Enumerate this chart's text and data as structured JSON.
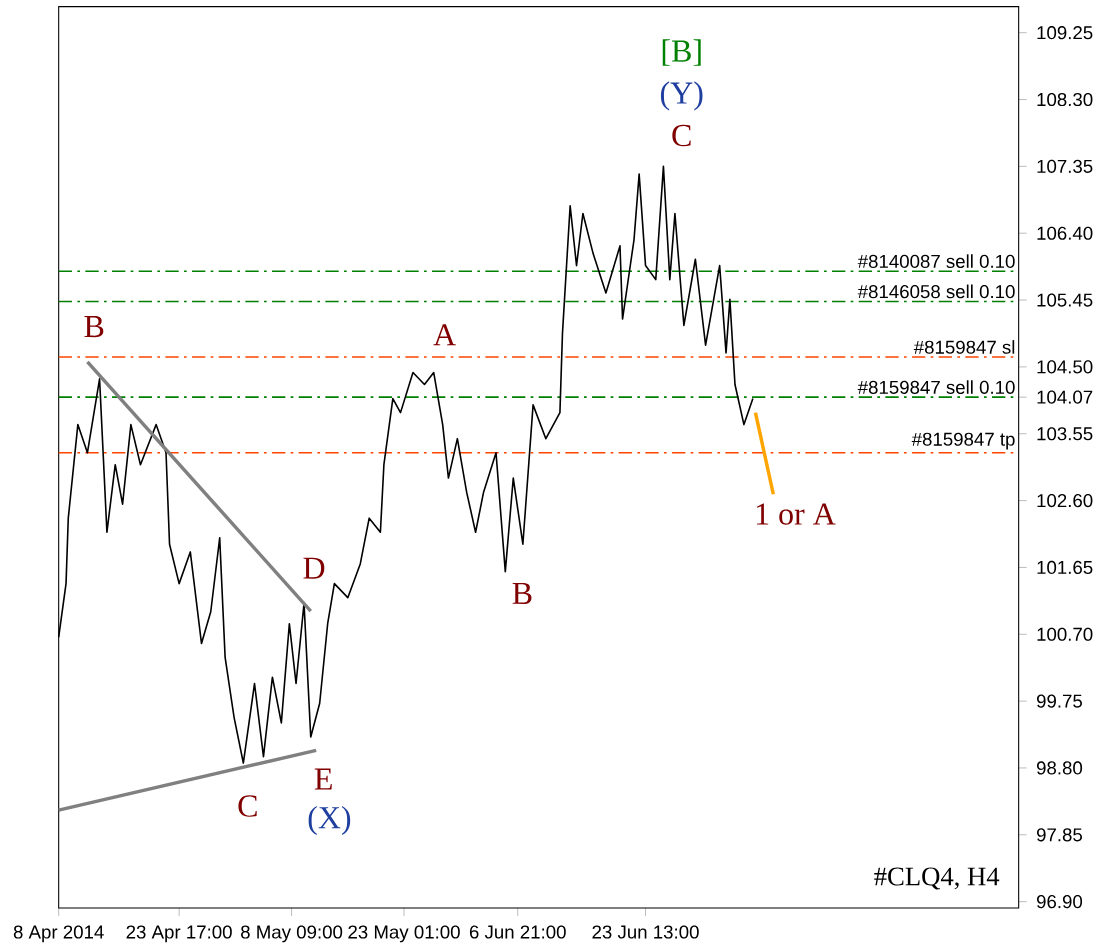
{
  "chart_data": {
    "type": "line",
    "xlim": [
      "2014-04-08T00:00",
      "2014-08-11T05:00"
    ],
    "ylim": [
      96.81,
      109.62
    ],
    "xticks": [
      {
        "value": "2014-04-08T00:00",
        "label": "8 Apr 2014"
      },
      {
        "value": "2014-04-23T17:00",
        "label": "23 Apr 17:00"
      },
      {
        "value": "2014-05-08T09:00",
        "label": "8 May 09:00"
      },
      {
        "value": "2014-05-23T01:00",
        "label": "23 May 01:00"
      },
      {
        "value": "2014-06-06T21:00",
        "label": "6 Jun 21:00"
      },
      {
        "value": "2014-06-23T13:00",
        "label": "23 Jun 13:00"
      }
    ],
    "yticks": [
      {
        "value": 96.9,
        "label": "96.90"
      },
      {
        "value": 97.85,
        "label": "97.85"
      },
      {
        "value": 98.8,
        "label": "98.80"
      },
      {
        "value": 99.75,
        "label": "99.75"
      },
      {
        "value": 100.7,
        "label": "100.70"
      },
      {
        "value": 101.65,
        "label": "101.65"
      },
      {
        "value": 102.6,
        "label": "102.60"
      },
      {
        "value": 103.55,
        "label": "103.55"
      },
      {
        "value": 104.07,
        "label": "104.07"
      },
      {
        "value": 104.5,
        "label": "104.50"
      },
      {
        "value": 105.45,
        "label": "105.45"
      },
      {
        "value": 106.4,
        "label": "106.40"
      },
      {
        "value": 107.35,
        "label": "107.35"
      },
      {
        "value": 108.3,
        "label": "108.30"
      },
      {
        "value": 109.25,
        "label": "109.25"
      }
    ],
    "series": [
      {
        "color": "#000000",
        "x": [
          "2014-04-08T00:00",
          "2014-04-08T23:00",
          "2014-04-09T06:00",
          "2014-04-10T12:00",
          "2014-04-11T18:00",
          "2014-04-13T08:00",
          "2014-04-14T07:00",
          "2014-04-15T09:00",
          "2014-04-16T08:00",
          "2014-04-17T10:00",
          "2014-04-18T16:00",
          "2014-04-20T17:00",
          "2014-04-22T00:00",
          "2014-04-22T11:00",
          "2014-04-23T17:00",
          "2014-04-25T04:00",
          "2014-04-26T15:00",
          "2014-04-27T20:00",
          "2014-04-29T00:00",
          "2014-04-29T17:00",
          "2014-04-30T21:00",
          "2014-05-02T02:00",
          "2014-05-03T13:00",
          "2014-05-04T17:00",
          "2014-05-05T21:00",
          "2014-05-07T01:00",
          "2014-05-08T02:00",
          "2014-05-08T23:00",
          "2014-05-10T00:00",
          "2014-05-10T21:00",
          "2014-05-12T01:00",
          "2014-05-13T02:00",
          "2014-05-13T23:00",
          "2014-05-15T17:00",
          "2014-05-17T08:00",
          "2014-05-18T12:00",
          "2014-05-19T23:00",
          "2014-05-20T10:00",
          "2014-05-21T14:00",
          "2014-05-22T14:00",
          "2014-05-24T05:00",
          "2014-05-25T17:00",
          "2014-05-26T22:00",
          "2014-05-28T02:00",
          "2014-05-28T20:00",
          "2014-05-30T00:00",
          "2014-05-31T05:00",
          "2014-06-01T09:00",
          "2014-06-02T10:00",
          "2014-06-04T01:00",
          "2014-06-05T06:00",
          "2014-06-06T07:00",
          "2014-06-07T13:00",
          "2014-06-08T21:00",
          "2014-06-10T13:00",
          "2014-06-12T09:00",
          "2014-06-12T17:00",
          "2014-06-13T17:00",
          "2014-06-14T13:00",
          "2014-06-15T09:00",
          "2014-06-16T17:00",
          "2014-06-18T09:00",
          "2014-06-20T05:00",
          "2014-06-20T13:00",
          "2014-06-22T01:00",
          "2014-06-22T17:00",
          "2014-06-23T13:00",
          "2014-06-24T21:00",
          "2014-06-25T21:00",
          "2014-06-26T17:00",
          "2014-06-27T09:00",
          "2014-06-28T13:00",
          "2014-06-30T01:00",
          "2014-07-01T09:00",
          "2014-07-03T05:00",
          "2014-07-04T01:00",
          "2014-07-04T13:00",
          "2014-07-05T05:00",
          "2014-07-06T09:00",
          "2014-07-07T13:00"
        ],
        "values": [
          100.66,
          101.42,
          102.35,
          103.68,
          103.28,
          104.33,
          102.15,
          103.11,
          102.55,
          103.68,
          103.11,
          103.68,
          103.28,
          101.98,
          101.42,
          101.87,
          100.57,
          101.02,
          102.07,
          100.37,
          99.52,
          98.87,
          100.0,
          98.96,
          100.09,
          99.44,
          100.85,
          100.0,
          101.14,
          99.24,
          99.72,
          100.85,
          101.42,
          101.22,
          101.7,
          102.35,
          102.15,
          103.11,
          104.05,
          103.85,
          104.42,
          104.25,
          104.42,
          103.68,
          102.92,
          103.48,
          102.72,
          102.15,
          102.72,
          103.28,
          101.59,
          102.92,
          101.98,
          103.96,
          103.48,
          103.85,
          104.98,
          106.79,
          105.94,
          106.68,
          106.11,
          105.55,
          106.22,
          105.18,
          106.31,
          107.24,
          105.94,
          105.74,
          107.35,
          105.74,
          106.68,
          105.09,
          106.03,
          104.81,
          105.94,
          104.7,
          105.46,
          104.25,
          103.68,
          104.05
        ]
      },
      {
        "color": "#ffa500",
        "x": [
          "2014-07-07T21:00",
          "2014-07-10T05:00"
        ],
        "values": [
          103.85,
          102.69
        ]
      },
      {
        "color": "#808080",
        "x": [
          "2014-04-11T18:00",
          "2014-05-10T21:00"
        ],
        "values": [
          104.57,
          101.03
        ]
      },
      {
        "color": "#808080",
        "x": [
          "2014-04-08T00:00",
          "2014-05-11T14:00"
        ],
        "values": [
          98.2,
          99.05
        ]
      }
    ],
    "ref_lines": [
      {
        "axis": "y",
        "value": 105.86,
        "label": "#8140087 sell 0.10",
        "color": "#008000",
        "line_style": "dashed"
      },
      {
        "axis": "y",
        "value": 105.43,
        "label": "#8146058 sell 0.10",
        "color": "#008000",
        "line_style": "dashed"
      },
      {
        "axis": "y",
        "value": 104.64,
        "label": "#8159847 sl",
        "color": "#ff4500",
        "line_style": "dashed"
      },
      {
        "axis": "y",
        "value": 104.07,
        "label": "#8159847 sell 0.10",
        "color": "#008000",
        "line_style": "dashed"
      },
      {
        "axis": "y",
        "value": 103.28,
        "label": "#8159847 tp",
        "color": "#ff4500",
        "line_style": "dashed"
      }
    ],
    "annotations": [
      "B",
      "A",
      "B",
      "C",
      "D",
      "E",
      "(X)",
      "C",
      "(Y)",
      "[B]",
      "1 or A",
      "#CLQ4, H4"
    ]
  }
}
